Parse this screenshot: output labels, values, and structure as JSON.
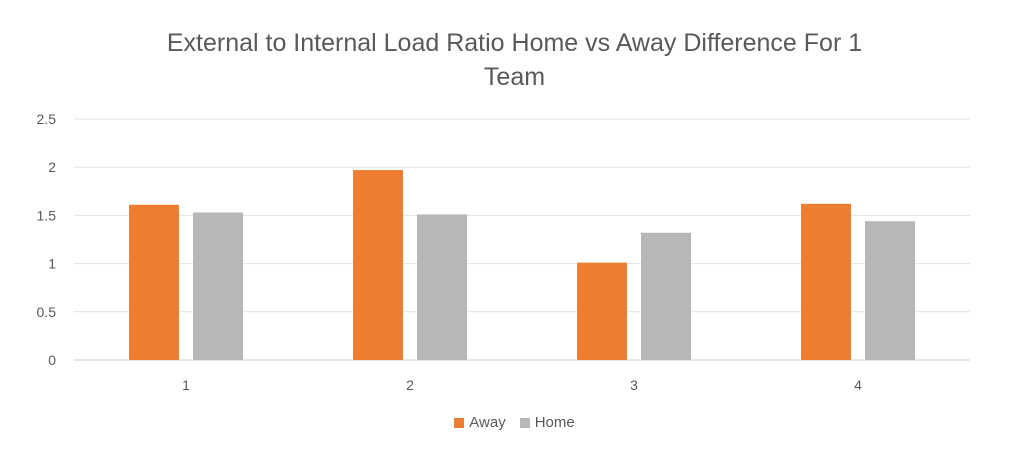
{
  "chart_data": {
    "type": "bar",
    "title_lines": [
      "External to Internal Load Ratio Home vs Away Difference For 1",
      "Team"
    ],
    "categories": [
      "1",
      "2",
      "3",
      "4"
    ],
    "series": [
      {
        "name": "Away",
        "values": [
          1.61,
          1.97,
          1.01,
          1.62
        ],
        "color": "#ED7D31"
      },
      {
        "name": "Home",
        "values": [
          1.53,
          1.51,
          1.32,
          1.44
        ],
        "color": "#B7B7B7"
      }
    ],
    "xlabel": "",
    "ylabel": "",
    "ylim": [
      0,
      2.5
    ],
    "yticks": [
      0,
      0.5,
      1,
      1.5,
      2,
      2.5
    ],
    "ytick_labels": [
      "0",
      "0.5",
      "1",
      "1.5",
      "2",
      "2.5"
    ],
    "grid": true,
    "legend_position": "bottom"
  }
}
